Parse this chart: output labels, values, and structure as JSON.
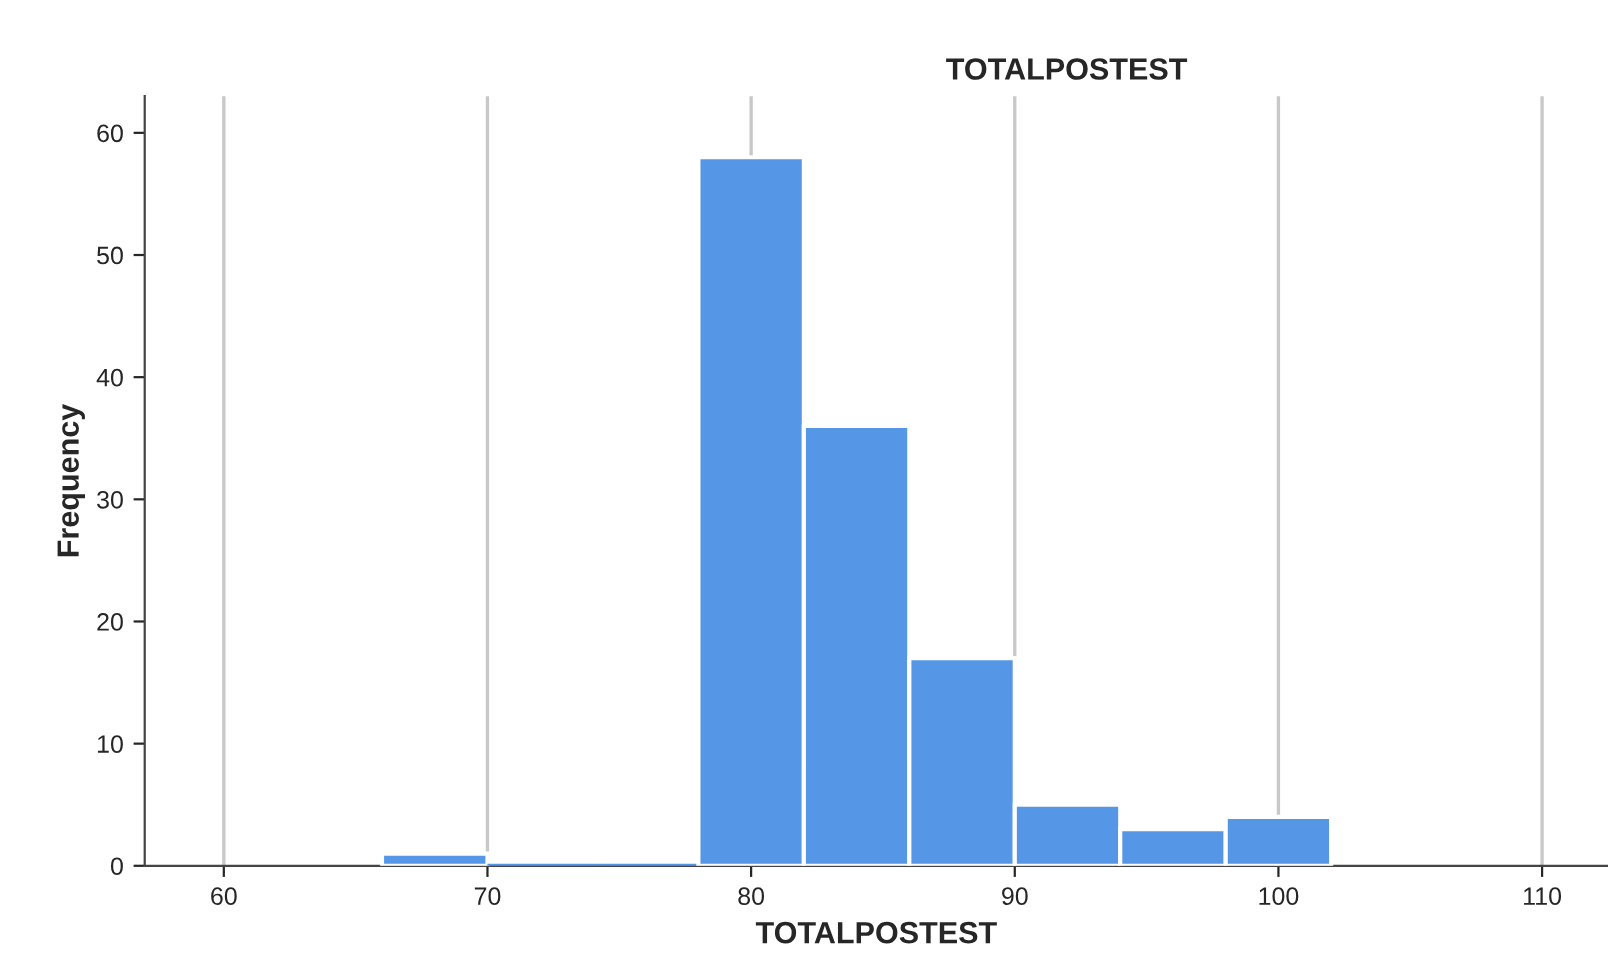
{
  "chart_data": {
    "type": "histogram",
    "title": "TOTALPOSTEST",
    "xlabel": "TOTALPOSTEST",
    "ylabel": "Frequency",
    "bins": [
      66,
      70,
      74,
      78,
      82,
      86,
      90,
      94,
      98,
      102
    ],
    "values": [
      1,
      0,
      0,
      58,
      36,
      17,
      5,
      3,
      4
    ],
    "color": "#5596e6",
    "xlim": [
      57,
      112.5
    ],
    "xticks": [
      60,
      70,
      80,
      90,
      100,
      110
    ],
    "ylim": [
      0,
      63
    ],
    "yticks": [
      0,
      10,
      20,
      30,
      40,
      50,
      60
    ],
    "grid": "x",
    "legend": false
  }
}
